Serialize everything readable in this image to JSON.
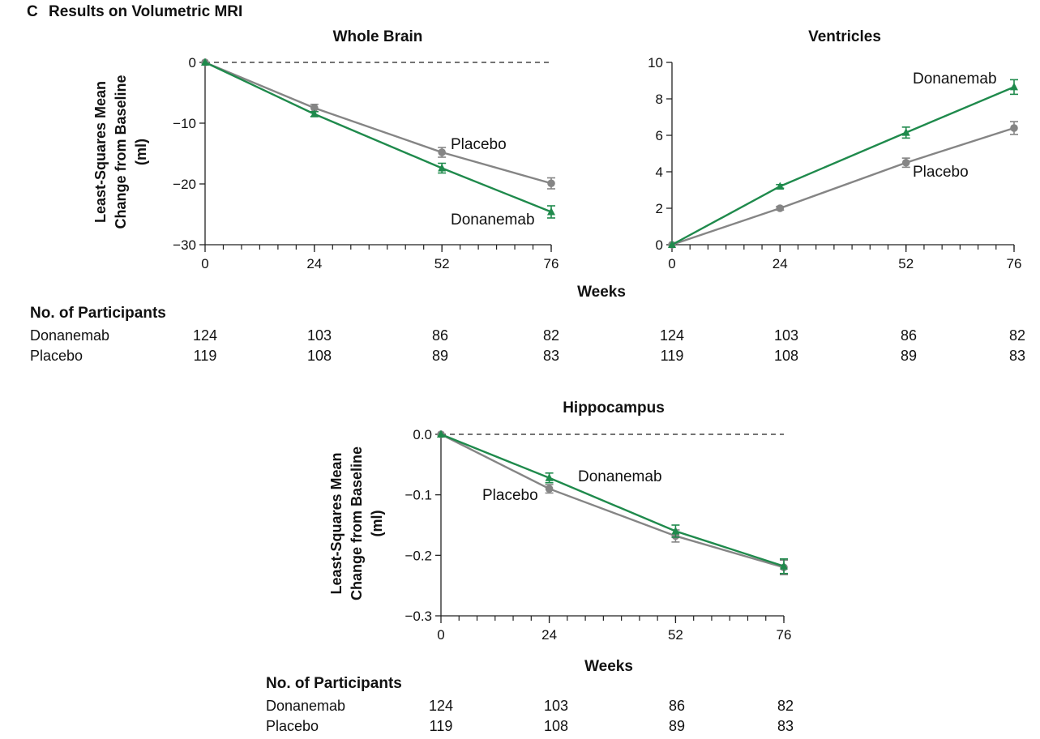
{
  "panel_label": "C",
  "figure_title": "Results on Volumetric MRI",
  "weeks_label": "Weeks",
  "participants": {
    "title": "No. of Participants",
    "arms": [
      {
        "name": "Donanemab",
        "counts": [
          "124",
          "103",
          "86",
          "82"
        ]
      },
      {
        "name": "Placebo",
        "counts": [
          "119",
          "108",
          "89",
          "83"
        ]
      }
    ]
  },
  "colors": {
    "donanemab": "#1f8a4c",
    "placebo": "#858585",
    "axis": "#222222"
  },
  "chart_data": [
    {
      "type": "line",
      "title": "Whole Brain",
      "ylabel_lines": [
        "Least-Squares Mean",
        "Change from Baseline",
        "(ml)"
      ],
      "xlabel": "Weeks",
      "x": [
        0,
        24,
        52,
        76
      ],
      "x_ticks": [
        "0",
        "24",
        "52",
        "76"
      ],
      "xlim": [
        0,
        76
      ],
      "ylim": [
        -30,
        0
      ],
      "y_ticks": [
        0,
        -10,
        -20,
        -30
      ],
      "y_tick_labels": [
        "0",
        "−10",
        "−20",
        "−30"
      ],
      "reference_line": 0,
      "series": [
        {
          "name": "Placebo",
          "values": [
            0,
            -7.5,
            -14.8,
            -19.9
          ],
          "err": [
            0,
            0.6,
            0.8,
            0.9
          ],
          "marker": "circle"
        },
        {
          "name": "Donanemab",
          "values": [
            0,
            -8.5,
            -17.4,
            -24.6
          ],
          "err": [
            0,
            0.4,
            0.8,
            1.0
          ],
          "marker": "triangle"
        }
      ],
      "annotations": [
        "Placebo",
        "Donanemab"
      ]
    },
    {
      "type": "line",
      "title": "Ventricles",
      "ylabel_lines": [],
      "xlabel": "Weeks",
      "x": [
        0,
        24,
        52,
        76
      ],
      "x_ticks": [
        "0",
        "24",
        "52",
        "76"
      ],
      "xlim": [
        0,
        76
      ],
      "ylim": [
        0,
        10
      ],
      "y_ticks": [
        0,
        2,
        4,
        6,
        8,
        10
      ],
      "y_tick_labels": [
        "0",
        "2",
        "4",
        "6",
        "8",
        "10"
      ],
      "series": [
        {
          "name": "Placebo",
          "values": [
            0,
            2.0,
            4.5,
            6.4
          ],
          "err": [
            0,
            0.1,
            0.25,
            0.35
          ],
          "marker": "circle"
        },
        {
          "name": "Donanemab",
          "values": [
            0,
            3.2,
            6.15,
            8.65
          ],
          "err": [
            0,
            0.1,
            0.3,
            0.4
          ],
          "marker": "triangle"
        }
      ],
      "annotations": [
        "Donanemab",
        "Placebo"
      ]
    },
    {
      "type": "line",
      "title": "Hippocampus",
      "ylabel_lines": [
        "Least-Squares Mean",
        "Change from Baseline",
        "(ml)"
      ],
      "xlabel": "Weeks",
      "x": [
        0,
        24,
        52,
        76
      ],
      "x_ticks": [
        "0",
        "24",
        "52",
        "76"
      ],
      "xlim": [
        0,
        76
      ],
      "ylim": [
        -0.3,
        0
      ],
      "y_ticks": [
        0,
        -0.1,
        -0.2,
        -0.3
      ],
      "y_tick_labels": [
        "0.0",
        "−0.1",
        "−0.2",
        "−0.3"
      ],
      "reference_line": 0,
      "series": [
        {
          "name": "Placebo",
          "values": [
            0,
            -0.09,
            -0.168,
            -0.22
          ],
          "err": [
            0,
            0.007,
            0.01,
            0.012
          ],
          "marker": "circle"
        },
        {
          "name": "Donanemab",
          "values": [
            0,
            -0.072,
            -0.16,
            -0.218
          ],
          "err": [
            0,
            0.008,
            0.01,
            0.012
          ],
          "marker": "triangle"
        }
      ],
      "annotations": [
        "Donanemab",
        "Placebo"
      ]
    }
  ]
}
